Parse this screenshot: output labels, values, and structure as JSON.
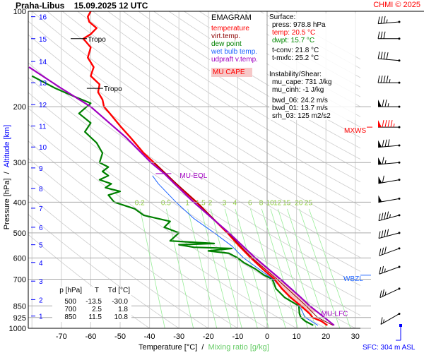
{
  "header": {
    "station": "Praha-Libus",
    "datetime": "15.09.2025 12 UTC",
    "credit": "CHMI © 2025"
  },
  "legend": {
    "title": "EMAGRAM",
    "items": [
      {
        "label": "temperature",
        "color": "#ff0000"
      },
      {
        "label": "virt.temp.",
        "color": "#8b0000"
      },
      {
        "label": "dew point",
        "color": "#008000"
      },
      {
        "label": "wet bulb temp.",
        "color": "#1e64ff"
      },
      {
        "label": "udpraft v.temp.",
        "color": "#a000c0"
      }
    ],
    "cape_label": "MU CAPE"
  },
  "surface": {
    "title": "Surface:",
    "press": "press: 978.8 hPa",
    "temp": "temp: 20.5 °C",
    "dwpt": "dwpt: 15.7 °C",
    "tconv": "t-conv: 21.8 °C",
    "tmxfc": "t-mxfc: 25.2 °C"
  },
  "instability": {
    "title": "Instability/Shear:",
    "mu_cape": "mu_cape: 731 J/kg",
    "mu_cinh": "mu_cinh: -1 J/kg",
    "bwd_06": "bwd_06: 24.2 m/s",
    "bwd_01": "bwd_01: 13.7 m/s",
    "srh_03": "srh_03: 125 m2/s2"
  },
  "table": {
    "headers": [
      "p [hPa]",
      "T",
      "Td [°C]"
    ],
    "rows": [
      [
        "500",
        "-13.5",
        "-30.0"
      ],
      [
        "700",
        "2.5",
        "1.8"
      ],
      [
        "850",
        "11.5",
        "10.8"
      ]
    ]
  },
  "sfc_label": "SFC: 304 m ASL",
  "chart_data": {
    "type": "line",
    "title": "Praha-Libus 15.09.2025 12 UTC",
    "xlabel": "Temperature [°C]",
    "xlabel2": "Mixing ratio [g/kg]",
    "ylabel": "Pressure [hPa]",
    "ylabel2": "Altitude [km]",
    "xlim": [
      -80,
      33
    ],
    "ylim": [
      1000,
      100
    ],
    "yscale": "log",
    "xticks": [
      "-70",
      "-60",
      "-50",
      "-40",
      "-30",
      "-20",
      "-10",
      "0",
      "10",
      "20",
      "30"
    ],
    "yticks": [
      "100",
      "200",
      "300",
      "400",
      "500",
      "600",
      "700",
      "850",
      "925",
      "1000"
    ],
    "altitude_ticks": [
      {
        "km": "1",
        "p": 915
      },
      {
        "km": "2",
        "p": 812
      },
      {
        "km": "3",
        "p": 710
      },
      {
        "km": "4",
        "p": 620
      },
      {
        "km": "5",
        "p": 545
      },
      {
        "km": "6",
        "p": 480
      },
      {
        "km": "7",
        "p": 418
      },
      {
        "km": "8",
        "p": 362
      },
      {
        "km": "9",
        "p": 312
      },
      {
        "km": "10",
        "p": 268
      },
      {
        "km": "11",
        "p": 230
      },
      {
        "km": "12",
        "p": 197
      },
      {
        "km": "13",
        "p": 168
      },
      {
        "km": "14",
        "p": 144
      },
      {
        "km": "15",
        "p": 122
      },
      {
        "km": "16",
        "p": 104
      }
    ],
    "mixing_ratios": [
      "0.2",
      "0.5",
      "1",
      "1.5",
      "2",
      "3",
      "4",
      "6",
      "8",
      "10",
      "12",
      "15",
      "20",
      "25"
    ],
    "series": [
      {
        "name": "temperature",
        "color": "#ff0000",
        "points": [
          [
            978.8,
            20.5
          ],
          [
            950,
            18.5
          ],
          [
            925,
            15.5
          ],
          [
            900,
            14.5
          ],
          [
            850,
            11.5
          ],
          [
            800,
            8
          ],
          [
            750,
            5
          ],
          [
            700,
            2.5
          ],
          [
            650,
            -1.5
          ],
          [
            600,
            -5.5
          ],
          [
            550,
            -9.5
          ],
          [
            500,
            -13.5
          ],
          [
            450,
            -18.5
          ],
          [
            400,
            -24
          ],
          [
            350,
            -31
          ],
          [
            300,
            -38.5
          ],
          [
            280,
            -42
          ],
          [
            250,
            -46.5
          ],
          [
            230,
            -50
          ],
          [
            210,
            -53.5
          ],
          [
            200,
            -55.5
          ],
          [
            190,
            -56
          ],
          [
            180,
            -57.5
          ],
          [
            170,
            -57
          ],
          [
            160,
            -60
          ],
          [
            150,
            -59
          ],
          [
            140,
            -61
          ],
          [
            130,
            -60
          ],
          [
            122,
            -62.5
          ],
          [
            118,
            -60
          ],
          [
            113,
            -58
          ],
          [
            108,
            -60.5
          ],
          [
            104,
            -61
          ],
          [
            100,
            -60
          ]
        ]
      },
      {
        "name": "virt.temp.",
        "color": "#8b0000",
        "points": [
          [
            978.8,
            22.4
          ],
          [
            925,
            17.2
          ],
          [
            850,
            13.3
          ],
          [
            700,
            3.4
          ],
          [
            600,
            -5.1
          ],
          [
            500,
            -13.3
          ],
          [
            400,
            -24
          ],
          [
            300,
            -38.5
          ]
        ]
      },
      {
        "name": "dew point",
        "color": "#008000",
        "points": [
          [
            978.8,
            15.7
          ],
          [
            950,
            13
          ],
          [
            925,
            11.5
          ],
          [
            900,
            11
          ],
          [
            850,
            10.8
          ],
          [
            800,
            6
          ],
          [
            750,
            3
          ],
          [
            700,
            1.8
          ],
          [
            680,
            -1
          ],
          [
            650,
            -4
          ],
          [
            620,
            -8
          ],
          [
            600,
            -10
          ],
          [
            580,
            -13
          ],
          [
            570,
            -20
          ],
          [
            560,
            -12
          ],
          [
            555,
            -25
          ],
          [
            545,
            -30
          ],
          [
            540,
            -18
          ],
          [
            530,
            -33
          ],
          [
            500,
            -30
          ],
          [
            480,
            -35
          ],
          [
            460,
            -33
          ],
          [
            440,
            -42
          ],
          [
            420,
            -45
          ],
          [
            400,
            -52
          ],
          [
            380,
            -54
          ],
          [
            370,
            -50
          ],
          [
            360,
            -55
          ],
          [
            350,
            -53
          ],
          [
            340,
            -57
          ],
          [
            330,
            -54
          ],
          [
            320,
            -56
          ],
          [
            310,
            -54
          ],
          [
            300,
            -57
          ],
          [
            280,
            -56
          ],
          [
            260,
            -58
          ],
          [
            240,
            -62
          ],
          [
            225,
            -60
          ],
          [
            210,
            -64
          ],
          [
            195,
            -60
          ],
          [
            185,
            -66
          ],
          [
            175,
            -72
          ],
          [
            160,
            -80
          ]
        ]
      },
      {
        "name": "wet bulb temp.",
        "color": "#1e64ff",
        "points": [
          [
            978.8,
            17.3
          ],
          [
            925,
            13
          ],
          [
            850,
            11
          ],
          [
            700,
            2
          ],
          [
            600,
            -8
          ],
          [
            550,
            -12
          ],
          [
            500,
            -18
          ],
          [
            450,
            -25
          ],
          [
            400,
            -31
          ],
          [
            350,
            -37
          ],
          [
            330,
            -39
          ]
        ]
      },
      {
        "name": "udpraft v.temp.",
        "color": "#a000c0",
        "points": [
          [
            978.8,
            22.8
          ],
          [
            925,
            19.5
          ],
          [
            850,
            14.5
          ],
          [
            800,
            11.5
          ],
          [
            700,
            4.5
          ],
          [
            600,
            -4
          ],
          [
            500,
            -13
          ],
          [
            400,
            -25
          ],
          [
            350,
            -31.5
          ],
          [
            325,
            -35
          ],
          [
            300,
            -39.5
          ],
          [
            250,
            -48
          ],
          [
            200,
            -60
          ],
          [
            175,
            -70
          ],
          [
            150,
            -81
          ]
        ]
      }
    ],
    "cape_range_hpa": [
      890,
      325
    ],
    "annotations": [
      {
        "text": "Tropo",
        "p": 175,
        "t": -57,
        "color": "#000000"
      },
      {
        "text": "Tropo",
        "p": 122,
        "t": -62.5,
        "color": "#000000"
      },
      {
        "text": "MU-EQL",
        "p": 325,
        "t": -35,
        "color": "#a000c0"
      },
      {
        "text": "MU-LFC",
        "p": 890,
        "t": 16.5,
        "color": "#a000c0"
      },
      {
        "text": "MXWS",
        "p": 232,
        "color": "#ff0000"
      },
      {
        "text": "WBZL",
        "p": 680,
        "color": "#1e64ff"
      }
    ],
    "wind": [
      {
        "p": 108,
        "dir": 265,
        "kt": 35
      },
      {
        "p": 122,
        "dir": 270,
        "kt": 30
      },
      {
        "p": 143,
        "dir": 275,
        "kt": 40
      },
      {
        "p": 168,
        "dir": 270,
        "kt": 45
      },
      {
        "p": 200,
        "dir": 270,
        "kt": 75
      },
      {
        "p": 232,
        "dir": 270,
        "kt": 95
      },
      {
        "p": 265,
        "dir": 265,
        "kt": 80
      },
      {
        "p": 300,
        "dir": 265,
        "kt": 65
      },
      {
        "p": 340,
        "dir": 260,
        "kt": 60
      },
      {
        "p": 390,
        "dir": 260,
        "kt": 50
      },
      {
        "p": 440,
        "dir": 255,
        "kt": 45
      },
      {
        "p": 500,
        "dir": 255,
        "kt": 40
      },
      {
        "p": 560,
        "dir": 250,
        "kt": 30
      },
      {
        "p": 640,
        "dir": 250,
        "kt": 25
      },
      {
        "p": 750,
        "dir": 245,
        "kt": 25
      },
      {
        "p": 900,
        "dir": 240,
        "kt": 15
      }
    ]
  }
}
